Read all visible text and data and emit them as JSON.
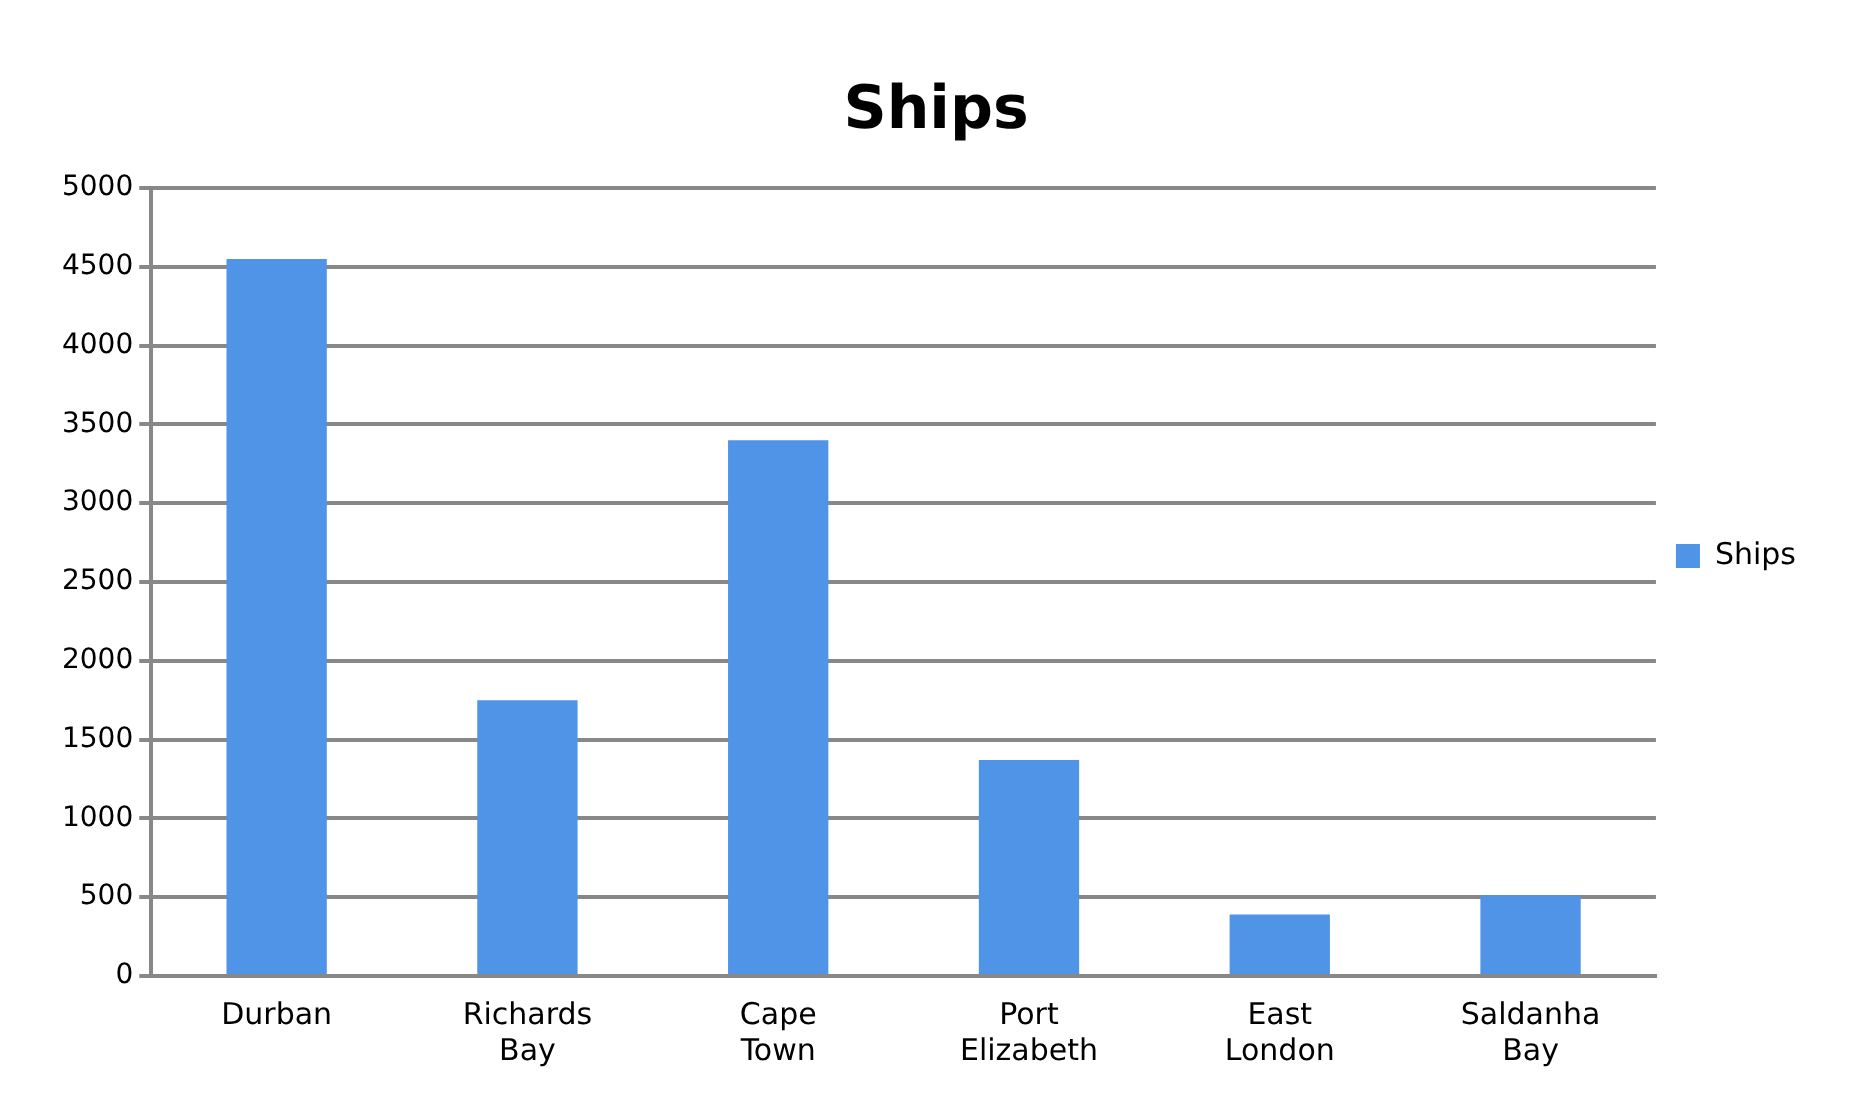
{
  "chart_data": {
    "type": "bar",
    "title": "Ships",
    "categories": [
      "Durban",
      "Richards Bay",
      "Cape Town",
      "Port Elizabeth",
      "East London",
      "Saldanha Bay"
    ],
    "series": [
      {
        "name": "Ships",
        "color": "#4f94e6",
        "values": [
          4550,
          1750,
          3400,
          1370,
          390,
          510
        ]
      }
    ],
    "ylim": [
      0,
      5000
    ],
    "yticks": [
      0,
      500,
      1000,
      1500,
      2000,
      2500,
      3000,
      3500,
      4000,
      4500,
      5000
    ],
    "grid": "y",
    "legend": "right"
  }
}
